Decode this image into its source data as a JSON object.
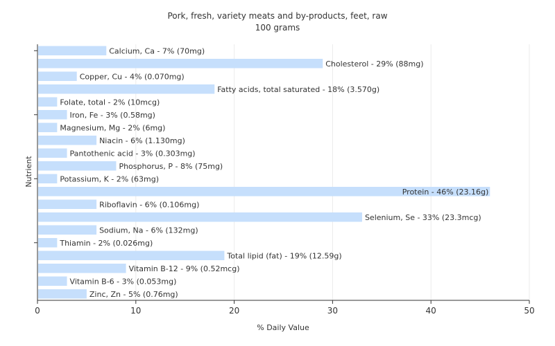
{
  "chart_data": {
    "type": "bar",
    "orientation": "horizontal",
    "title": "Pork, fresh, variety meats and by-products, feet, raw",
    "subtitle": "100 grams",
    "xlabel": "% Daily Value",
    "ylabel": "Nutrient",
    "xlim": [
      0,
      50
    ],
    "xticks": [
      "0",
      "10",
      "20",
      "30",
      "40",
      "50"
    ],
    "grid": true,
    "bar_color": "#c6dffc",
    "categories": [
      "Calcium, Ca",
      "Cholesterol",
      "Copper, Cu",
      "Fatty acids, total saturated",
      "Folate, total",
      "Iron, Fe",
      "Magnesium, Mg",
      "Niacin",
      "Pantothenic acid",
      "Phosphorus, P",
      "Potassium, K",
      "Protein",
      "Riboflavin",
      "Selenium, Se",
      "Sodium, Na",
      "Thiamin",
      "Total lipid (fat)",
      "Vitamin B-12",
      "Vitamin B-6",
      "Zinc, Zn"
    ],
    "values": [
      7,
      29,
      4,
      18,
      2,
      3,
      2,
      6,
      3,
      8,
      2,
      46,
      6,
      33,
      6,
      2,
      19,
      9,
      3,
      5
    ],
    "labels": [
      "Calcium, Ca - 7% (70mg)",
      "Cholesterol - 29% (88mg)",
      "Copper, Cu - 4% (0.070mg)",
      "Fatty acids, total saturated - 18% (3.570g)",
      "Folate, total - 2% (10mcg)",
      "Iron, Fe - 3% (0.58mg)",
      "Magnesium, Mg - 2% (6mg)",
      "Niacin - 6% (1.130mg)",
      "Pantothenic acid - 3% (0.303mg)",
      "Phosphorus, P - 8% (75mg)",
      "Potassium, K - 2% (63mg)",
      "Protein - 46% (23.16g)",
      "Riboflavin - 6% (0.106mg)",
      "Selenium, Se - 33% (23.3mcg)",
      "Sodium, Na - 6% (132mg)",
      "Thiamin - 2% (0.026mg)",
      "Total lipid (fat) - 19% (12.59g)",
      "Vitamin B-12 - 9% (0.52mcg)",
      "Vitamin B-6 - 3% (0.053mg)",
      "Zinc, Zn - 5% (0.76mg)"
    ]
  }
}
